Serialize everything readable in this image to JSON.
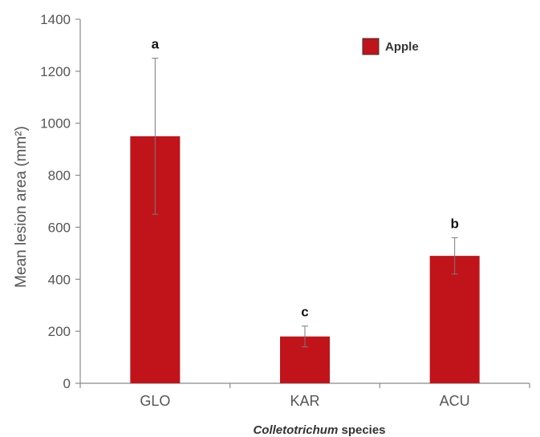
{
  "chart_data": {
    "type": "bar",
    "categories": [
      "GLO",
      "KAR",
      "ACU"
    ],
    "series": [
      {
        "name": "Apple",
        "values": [
          950,
          180,
          490
        ],
        "errors": [
          300,
          40,
          70
        ],
        "color": "#c0141a"
      }
    ],
    "significance_labels": [
      "a",
      "c",
      "b"
    ],
    "ylabel": "Mean lesion area (mm²)",
    "xlabel_italic": "Colletotrichum",
    "xlabel_rest": " species",
    "ylim": [
      0,
      1400
    ],
    "yticks": [
      0,
      200,
      400,
      600,
      800,
      1000,
      1200,
      1400
    ],
    "grid": false,
    "legend_position": "top-right"
  }
}
